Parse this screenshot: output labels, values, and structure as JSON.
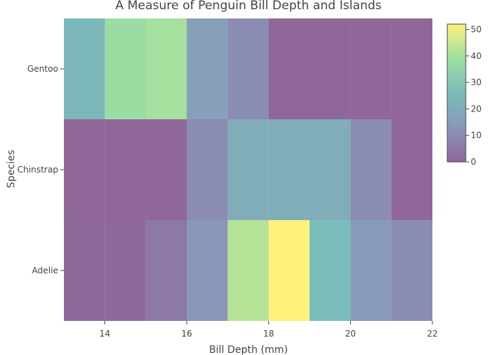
{
  "chart_data": {
    "type": "heatmap",
    "title": "A Measure of Penguin Bill Depth and Islands",
    "xlabel": "Bill Depth (mm)",
    "ylabel": "Species",
    "x_bins": [
      13,
      14,
      15,
      16,
      17,
      18,
      19,
      20,
      21,
      22
    ],
    "x_ticks": [
      14,
      16,
      18,
      20,
      22
    ],
    "xlim": [
      13,
      22
    ],
    "categories": [
      "Adelie",
      "Chinstrap",
      "Gentoo"
    ],
    "z": [
      [
        1,
        1,
        5,
        13,
        42,
        52,
        26,
        14,
        10
      ],
      [
        0,
        0,
        0,
        10,
        20,
        20,
        20,
        10,
        0
      ],
      [
        24,
        38,
        40,
        16,
        10,
        0,
        0,
        0,
        0
      ]
    ],
    "colorscale": [
      "#440154",
      "#3b528b",
      "#21918c",
      "#5ec962",
      "#fde725"
    ],
    "cell_opacity": 0.6,
    "zlim": [
      0,
      52
    ],
    "colorbar_ticks": [
      0,
      10,
      20,
      30,
      40,
      50
    ]
  }
}
